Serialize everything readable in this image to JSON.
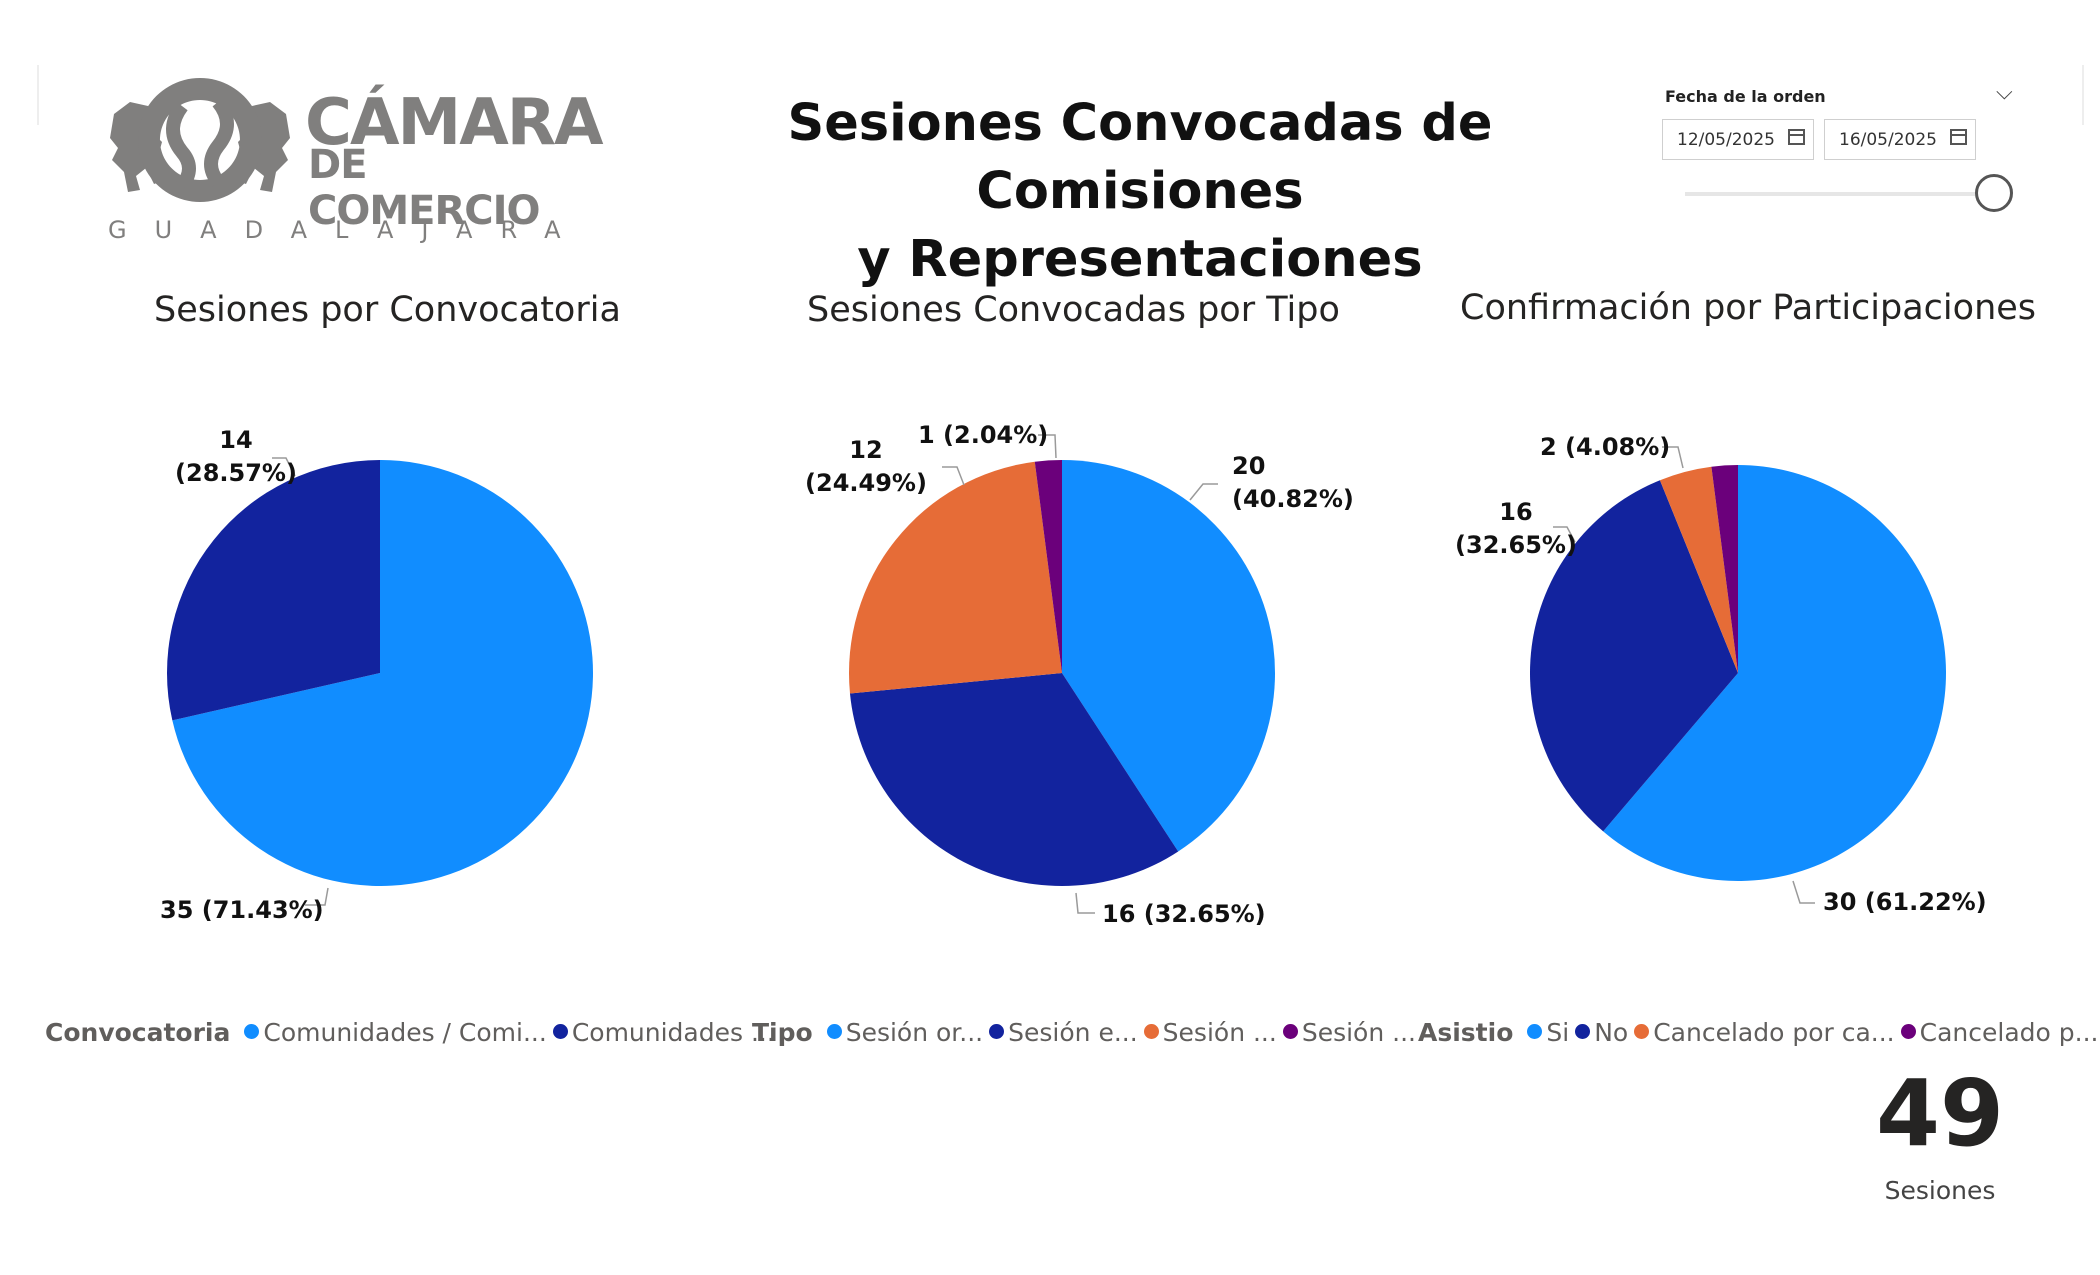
{
  "logo": {
    "name_line1": "CÁMARA",
    "name_line2": "DE COMERCIO",
    "city": "GUADALAJARA"
  },
  "page_title_line1": "Sesiones Convocadas de Comisiones",
  "page_title_line2": "y Representaciones",
  "date_slicer": {
    "label": "Fecha de la orden",
    "start": "12/05/2025",
    "end": "16/05/2025",
    "icons": [
      "chevron-down-icon",
      "calendar-icon"
    ]
  },
  "card": {
    "value": "49",
    "label": "Sesiones"
  },
  "colors": {
    "light_blue": "#118DFF",
    "dark_blue": "#12239E",
    "orange": "#E66C37",
    "purple": "#6B007B"
  },
  "chart_data": [
    {
      "type": "pie",
      "title": "Sesiones por Convocatoria",
      "legend_title": "Convocatoria",
      "legend_labels": [
        "Comunidades / Comi...",
        "Comunidades ..."
      ],
      "values": [
        35,
        14
      ],
      "labels": [
        "35 (71.43%)",
        "14 (28.57%)"
      ],
      "colors": [
        "#118DFF",
        "#12239E"
      ]
    },
    {
      "type": "pie",
      "title": "Sesiones Convocadas por Tipo",
      "legend_title": "Tipo",
      "legend_labels": [
        "Sesión or...",
        "Sesión e...",
        "Sesión ...",
        "Sesión ..."
      ],
      "values": [
        20,
        16,
        12,
        1
      ],
      "labels": [
        "20 (40.82%)",
        "16 (32.65%)",
        "12 (24.49%)",
        "1 (2.04%)"
      ],
      "colors": [
        "#118DFF",
        "#12239E",
        "#E66C37",
        "#6B007B"
      ]
    },
    {
      "type": "pie",
      "title": "Confirmación por Participaciones",
      "legend_title": "Asistio",
      "legend_labels": [
        "Si",
        "No",
        "Cancelado por ca...",
        "Cancelado p..."
      ],
      "values": [
        30,
        16,
        2,
        1
      ],
      "labels": [
        "30 (61.22%)",
        "16 (32.65%)",
        "2 (4.08%)",
        ""
      ],
      "colors": [
        "#118DFF",
        "#12239E",
        "#E66C37",
        "#6B007B"
      ]
    }
  ]
}
